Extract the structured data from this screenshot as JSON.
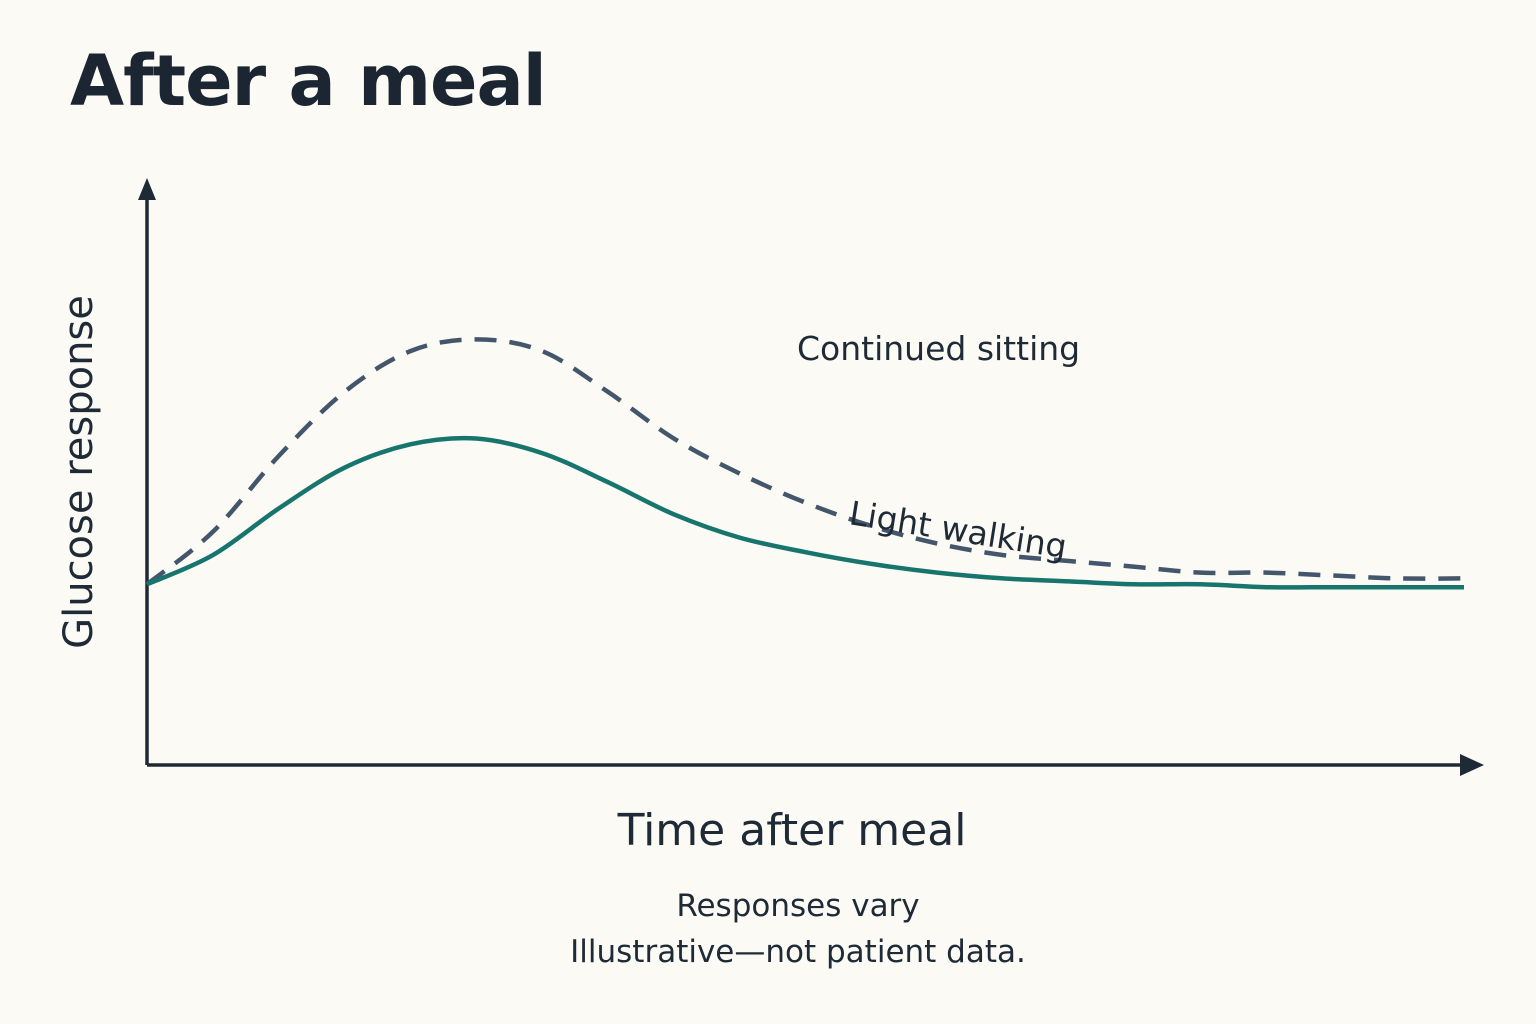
{
  "title": "After a meal",
  "chart_data": {
    "type": "line",
    "title": "After a meal",
    "xlabel": "Time after meal",
    "ylabel": "Glucose response",
    "x_ticks": [],
    "y_ticks": [],
    "xlim": [
      0,
      10
    ],
    "ylim": [
      0,
      10
    ],
    "grid": false,
    "legend": "none (series labelled directly on the curves)",
    "x": [
      0,
      0.5,
      1,
      1.5,
      2,
      2.5,
      3,
      3.5,
      4,
      4.5,
      5,
      5.5,
      6,
      6.5,
      7,
      7.5,
      8,
      8.5,
      9,
      9.5,
      10
    ],
    "series": [
      {
        "name": "Continued sitting",
        "style": "dashed",
        "color": "#44566c",
        "values": [
          3.1,
          4.0,
          5.3,
          6.4,
          7.1,
          7.3,
          7.1,
          6.4,
          5.6,
          5.0,
          4.5,
          4.1,
          3.8,
          3.6,
          3.5,
          3.4,
          3.3,
          3.3,
          3.25,
          3.2,
          3.2
        ]
      },
      {
        "name": "Light walking",
        "style": "solid",
        "color": "#17756e",
        "values": [
          3.1,
          3.6,
          4.4,
          5.1,
          5.5,
          5.6,
          5.35,
          4.85,
          4.3,
          3.9,
          3.65,
          3.45,
          3.3,
          3.2,
          3.15,
          3.1,
          3.1,
          3.05,
          3.05,
          3.05,
          3.05
        ]
      }
    ]
  },
  "notes": {
    "line1": "Responses vary",
    "line2": "Illustrative—not patient data."
  },
  "colors": {
    "background": "#fbfaf5",
    "axis": "#1f2a37",
    "text": "#1f2a37",
    "sitting": "#44566c",
    "walking": "#17756e"
  }
}
